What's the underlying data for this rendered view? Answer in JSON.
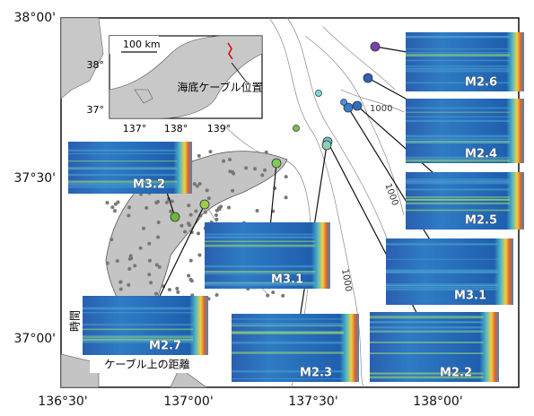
{
  "map": {
    "lat_labels": [
      "38°00'",
      "37°30'",
      "37°00'"
    ],
    "lon_labels": [
      "136°30'",
      "137°00'",
      "137°30'",
      "138°00'"
    ],
    "contour_labels": [
      "1000",
      "1000",
      "1000"
    ],
    "inset": {
      "scale": "100 km",
      "lat_labels": [
        "38°",
        "37°"
      ],
      "lon_labels": [
        "137°",
        "138°",
        "139°"
      ],
      "callout": "海底ケーブル位置"
    },
    "panels": [
      {
        "label": "M2.6"
      },
      {
        "label": "M2.4"
      },
      {
        "label": "M2.5"
      },
      {
        "label": "M3.1"
      },
      {
        "label": "M2.2"
      },
      {
        "label": "M2.3"
      },
      {
        "label": "M3.1"
      },
      {
        "label": "M2.7"
      },
      {
        "label": "M3.2"
      }
    ],
    "panel_axes": {
      "time": "時間",
      "distance": "ケーブル上の距離"
    }
  }
}
